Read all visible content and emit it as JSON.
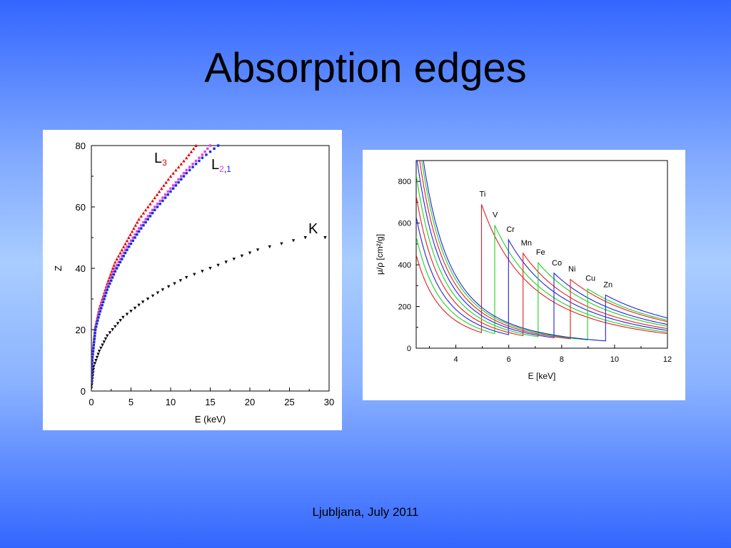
{
  "slide": {
    "title": "Absorption edges",
    "footer": "Ljubljana, July 2011"
  },
  "chart_data": [
    {
      "type": "scatter",
      "xlabel": "E (keV)",
      "ylabel": "Z",
      "xlim": [
        0,
        30
      ],
      "ylim": [
        0,
        80
      ],
      "xticks": [
        0,
        5,
        10,
        15,
        20,
        25,
        30
      ],
      "yticks": [
        0,
        20,
        40,
        60,
        80
      ],
      "series": [
        {
          "name": "K",
          "color": "#000000",
          "marker": "triangle-down",
          "x": [
            0.01,
            0.3,
            1.0,
            2.0,
            4.0,
            6.5,
            9.0,
            12.0,
            15.0,
            18.0,
            21.0,
            24.0,
            27.0,
            29.5
          ],
          "y": [
            1,
            8,
            13,
            18,
            24,
            29,
            33,
            37,
            40,
            43,
            46,
            48,
            50,
            50
          ]
        },
        {
          "name": "L3",
          "color": "#e00000",
          "marker": "triangle-up",
          "x": [
            0.01,
            0.1,
            0.5,
            1.0,
            2.0,
            3.0,
            4.5,
            6.0,
            8.0,
            10.0,
            12.0,
            13.2
          ],
          "y": [
            3,
            11,
            21,
            27,
            35,
            42,
            49,
            56,
            63,
            70,
            76,
            80
          ]
        },
        {
          "name": "L2",
          "color": "#e040e0",
          "marker": "square",
          "x": [
            0.01,
            0.1,
            0.5,
            1.0,
            2.0,
            3.0,
            4.5,
            6.0,
            8.0,
            10.0,
            12.0,
            14.0,
            15.0
          ],
          "y": [
            3,
            10,
            20,
            26,
            34,
            40,
            47,
            53,
            60,
            66,
            72,
            77,
            80
          ]
        },
        {
          "name": "L1",
          "color": "#1030e0",
          "marker": "square",
          "x": [
            0.01,
            0.1,
            0.5,
            1.0,
            2.0,
            3.0,
            4.5,
            6.0,
            8.0,
            10.0,
            12.0,
            14.0,
            16.0
          ],
          "y": [
            3,
            10,
            20,
            25,
            33,
            39,
            46,
            52,
            59,
            65,
            71,
            76,
            80
          ]
        }
      ],
      "annotations": [
        {
          "base": "L",
          "subs": [
            {
              "text": "3",
              "color": "#e00000"
            }
          ]
        },
        {
          "base": "L",
          "subs": [
            {
              "text": "2",
              "color": "#e040e0"
            },
            {
              "text": ",",
              "color": "#000000"
            },
            {
              "text": "1",
              "color": "#1030e0"
            }
          ]
        },
        {
          "base": "K",
          "subs": []
        }
      ]
    },
    {
      "type": "line",
      "xlabel": "E [keV]",
      "ylabel": "μ/ρ [cm²/g]",
      "xlim": [
        2.5,
        12
      ],
      "ylim": [
        0,
        900
      ],
      "xticks": [
        4,
        6,
        8,
        10,
        12
      ],
      "yticks": [
        0,
        200,
        400,
        600,
        800
      ],
      "decay_exponent": 2.6,
      "series": [
        {
          "name": "Ti",
          "color": "#e02020",
          "edge": 4.97,
          "pre": 75,
          "post": 690
        },
        {
          "name": "V",
          "color": "#20d020",
          "edge": 5.47,
          "pre": 70,
          "post": 590
        },
        {
          "name": "Cr",
          "color": "#2020e0",
          "edge": 5.99,
          "pre": 65,
          "post": 520
        },
        {
          "name": "Mn",
          "color": "#e02020",
          "edge": 6.54,
          "pre": 60,
          "post": 455
        },
        {
          "name": "Fe",
          "color": "#20d020",
          "edge": 7.11,
          "pre": 55,
          "post": 410
        },
        {
          "name": "Co",
          "color": "#2020e0",
          "edge": 7.71,
          "pre": 50,
          "post": 360
        },
        {
          "name": "Ni",
          "color": "#e02020",
          "edge": 8.33,
          "pre": 45,
          "post": 330
        },
        {
          "name": "Cu",
          "color": "#20d020",
          "edge": 8.98,
          "pre": 40,
          "post": 285
        },
        {
          "name": "Zn",
          "color": "#2020e0",
          "edge": 9.66,
          "pre": 35,
          "post": 255
        }
      ]
    }
  ]
}
